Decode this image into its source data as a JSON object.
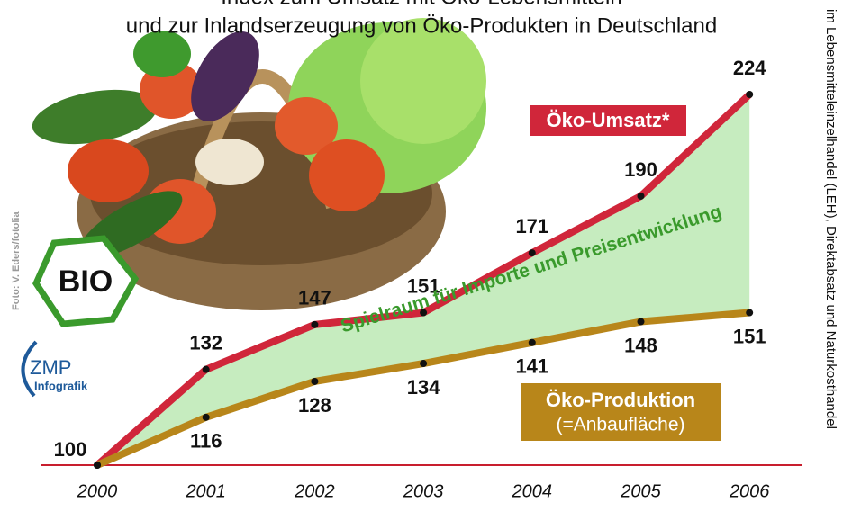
{
  "chart_data": {
    "type": "line",
    "title": "Index zum Umsatz mit Öko-Lebensmitteln",
    "subtitle": "und zur Inlandserzeugung von Öko-Produkten in Deutschland",
    "footnote": "im Lebensmitteleinzelhandel (LEH), Direktabsatz und Naturkosthandel",
    "credit": "Foto: V. Eders/fotolia",
    "logos": [
      "BIO",
      "ZMP",
      "Infografik"
    ],
    "annotations": [
      "Spielraum für Importe und Preisentwicklung",
      "(=Anbaufläche)"
    ],
    "categories": [
      "2000",
      "2001",
      "2002",
      "2003",
      "2004",
      "2005",
      "2006"
    ],
    "series": [
      {
        "name": "Öko-Umsatz*",
        "color": "#d0263a",
        "values": [
          100,
          132,
          147,
          151,
          171,
          190,
          224
        ]
      },
      {
        "name": "Öko-Produktion",
        "color": "#b8861a",
        "values": [
          100,
          116,
          128,
          134,
          141,
          148,
          151
        ]
      }
    ],
    "fill_color": "#c6ecbf",
    "ylim": [
      100,
      224
    ]
  }
}
